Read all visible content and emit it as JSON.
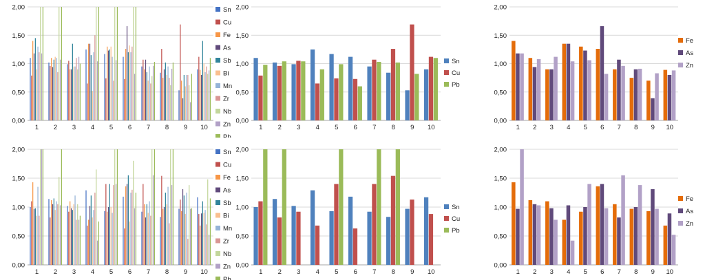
{
  "chart_data": [
    {
      "type": "bar",
      "categories": [
        "1",
        "2",
        "3",
        "4",
        "5",
        "6",
        "7",
        "8",
        "9",
        "10"
      ],
      "ylim": [
        0,
        2
      ],
      "yticks": [
        "0,00",
        "0,50",
        "1,00",
        "1,50",
        "2,00"
      ],
      "grid": true,
      "legend_position": "right",
      "series": [
        {
          "name": "Sn",
          "color": "#4472C4",
          "values": [
            1.1,
            1.02,
            0.99,
            1.25,
            1.17,
            1.12,
            0.95,
            0.84,
            0.53,
            0.9
          ]
        },
        {
          "name": "Cu",
          "color": "#C0504D",
          "values": [
            0.79,
            0.96,
            1.05,
            0.65,
            0.74,
            0.73,
            1.07,
            1.26,
            1.69,
            1.12
          ]
        },
        {
          "name": "Fe",
          "color": "#F79646",
          "values": [
            1.4,
            1.1,
            0.9,
            1.35,
            1.3,
            1.26,
            0.9,
            0.75,
            0.7,
            0.89
          ]
        },
        {
          "name": "As",
          "color": "#604A7B",
          "values": [
            1.18,
            0.94,
            0.9,
            1.35,
            1.23,
            1.66,
            1.07,
            0.9,
            0.39,
            0.8
          ]
        },
        {
          "name": "Sb",
          "color": "#31849B",
          "values": [
            1.45,
            1.07,
            1.35,
            1.15,
            1.25,
            1.2,
            0.85,
            1.02,
            0.8,
            1.4
          ]
        },
        {
          "name": "Bi",
          "color": "#FABF8F",
          "values": [
            0.9,
            1.12,
            0.95,
            0.52,
            1.3,
            1.32,
            0.7,
            0.8,
            0.6,
            1.0
          ]
        },
        {
          "name": "Mn",
          "color": "#95B3D7",
          "values": [
            1.3,
            1.1,
            0.95,
            1.2,
            1.12,
            1.2,
            0.95,
            0.95,
            0.8,
            0.85
          ]
        },
        {
          "name": "Zr",
          "color": "#D99694",
          "values": [
            1.2,
            0.85,
            1.1,
            1.5,
            0.7,
            1.3,
            0.65,
            0.75,
            0.8,
            0.95
          ]
        },
        {
          "name": "Nb",
          "color": "#C3D69B",
          "values": [
            2.0,
            2.0,
            0.9,
            2.0,
            2.0,
            2.0,
            0.78,
            0.62,
            0.62,
            0.82
          ]
        },
        {
          "name": "Zn",
          "color": "#B2A1C7",
          "values": [
            1.18,
            1.07,
            1.12,
            1.04,
            1.06,
            0.82,
            0.96,
            0.91,
            0.32,
            0.88
          ]
        },
        {
          "name": "Pb",
          "color": "#9BBB59",
          "values": [
            2.0,
            2.0,
            1.0,
            2.0,
            2.0,
            2.0,
            1.03,
            1.02,
            0.82,
            1.1
          ]
        }
      ]
    },
    {
      "type": "bar",
      "categories": [
        "1",
        "2",
        "3",
        "4",
        "5",
        "6",
        "7",
        "8",
        "9",
        "10"
      ],
      "ylim": [
        0,
        2
      ],
      "yticks": [
        "0,00",
        "0,50",
        "1,00",
        "1,50",
        "2,00"
      ],
      "grid": true,
      "legend_position": "right",
      "series": [
        {
          "name": "Sn",
          "color": "#4F81BD",
          "values": [
            1.1,
            1.02,
            0.99,
            1.25,
            1.17,
            1.12,
            0.95,
            0.84,
            0.53,
            0.9
          ]
        },
        {
          "name": "Cu",
          "color": "#C0504D",
          "values": [
            0.79,
            0.96,
            1.05,
            0.65,
            0.74,
            0.73,
            1.07,
            1.26,
            1.69,
            1.12
          ]
        },
        {
          "name": "Pb",
          "color": "#9BBB59",
          "values": [
            0.98,
            1.04,
            1.04,
            0.9,
            0.99,
            0.6,
            1.03,
            1.02,
            0.82,
            1.1
          ]
        }
      ]
    },
    {
      "type": "bar",
      "categories": [
        "1",
        "2",
        "3",
        "4",
        "5",
        "6",
        "7",
        "8",
        "9",
        "10"
      ],
      "ylim": [
        0,
        2
      ],
      "yticks": [
        "0,00",
        "0,50",
        "1,00",
        "1,50",
        "2,00"
      ],
      "grid": true,
      "legend_position": "right",
      "series": [
        {
          "name": "Fe",
          "color": "#E46C0A",
          "values": [
            1.4,
            1.1,
            0.9,
            1.35,
            1.3,
            1.26,
            0.9,
            0.75,
            0.7,
            0.89
          ]
        },
        {
          "name": "As",
          "color": "#604A7B",
          "values": [
            1.18,
            0.94,
            0.9,
            1.35,
            1.23,
            1.66,
            1.07,
            0.9,
            0.39,
            0.8
          ]
        },
        {
          "name": "Zn",
          "color": "#B2A1C7",
          "values": [
            1.18,
            1.08,
            1.12,
            1.04,
            1.06,
            0.82,
            0.96,
            0.91,
            0.83,
            0.88
          ]
        }
      ]
    },
    {
      "type": "bar",
      "categories": [
        "1",
        "2",
        "3",
        "4",
        "5",
        "6",
        "7",
        "8",
        "9",
        "10"
      ],
      "ylim": [
        0,
        2
      ],
      "yticks": [
        "0,00",
        "0,50",
        "1,00",
        "1,50",
        "2,00"
      ],
      "grid": true,
      "legend_position": "right",
      "series": [
        {
          "name": "Sn",
          "color": "#4472C4",
          "values": [
            1.0,
            1.14,
            1.02,
            1.29,
            0.93,
            1.18,
            0.92,
            0.83,
            0.97,
            1.17
          ]
        },
        {
          "name": "Cu",
          "color": "#C0504D",
          "values": [
            1.1,
            0.82,
            0.92,
            0.68,
            1.4,
            0.63,
            1.4,
            1.54,
            1.13,
            0.88
          ]
        },
        {
          "name": "Fe",
          "color": "#F79646",
          "values": [
            1.43,
            1.12,
            1.1,
            0.78,
            0.92,
            1.36,
            1.05,
            0.97,
            0.93,
            0.68
          ]
        },
        {
          "name": "As",
          "color": "#604A7B",
          "values": [
            0.97,
            1.05,
            0.98,
            1.02,
            1.0,
            1.4,
            0.82,
            1.0,
            1.31,
            0.89
          ]
        },
        {
          "name": "Sb",
          "color": "#31849B",
          "values": [
            0.98,
            1.15,
            0.95,
            1.2,
            1.4,
            1.55,
            1.05,
            1.25,
            1.2,
            1.1
          ]
        },
        {
          "name": "Bi",
          "color": "#FABF8F",
          "values": [
            0.85,
            0.95,
            1.05,
            0.82,
            1.0,
            0.75,
            0.9,
            1.05,
            0.88,
            0.9
          ]
        },
        {
          "name": "Mn",
          "color": "#95B3D7",
          "values": [
            1.35,
            1.1,
            1.2,
            0.95,
            0.9,
            1.25,
            1.1,
            1.35,
            1.25,
            0.95
          ]
        },
        {
          "name": "Zr",
          "color": "#D99694",
          "values": [
            0.85,
            1.05,
            0.78,
            1.25,
            1.38,
            1.3,
            0.85,
            0.72,
            0.45,
            0.7
          ]
        },
        {
          "name": "Nb",
          "color": "#C3D69B",
          "values": [
            2.0,
            1.52,
            1.05,
            1.65,
            2.0,
            1.8,
            2.0,
            2.0,
            1.38,
            1.48
          ]
        },
        {
          "name": "Zn",
          "color": "#B2A1C7",
          "values": [
            2.0,
            1.03,
            0.78,
            0.42,
            1.4,
            0.98,
            1.55,
            1.38,
            0.97,
            0.52
          ]
        },
        {
          "name": "Pb",
          "color": "#9BBB59",
          "values": [
            2.0,
            2.0,
            0.85,
            0.75,
            2.0,
            1.25,
            2.0,
            2.0,
            0.98,
            1.15
          ]
        }
      ]
    },
    {
      "type": "bar",
      "categories": [
        "1",
        "2",
        "3",
        "4",
        "5",
        "6",
        "7",
        "8",
        "9",
        "10"
      ],
      "ylim": [
        0,
        2
      ],
      "yticks": [
        "0,00",
        "0,50",
        "1,00",
        "1,50",
        "2,00"
      ],
      "grid": true,
      "legend_position": "right",
      "series": [
        {
          "name": "Sn",
          "color": "#4F81BD",
          "values": [
            1.0,
            1.14,
            1.02,
            1.29,
            0.93,
            1.18,
            0.92,
            0.83,
            0.97,
            1.17
          ]
        },
        {
          "name": "Cu",
          "color": "#C0504D",
          "values": [
            1.1,
            0.82,
            0.92,
            0.68,
            1.4,
            0.63,
            1.4,
            1.54,
            1.13,
            0.88
          ]
        },
        {
          "name": "Pb",
          "color": "#9BBB59",
          "values": [
            2.0,
            2.0,
            0.0,
            0.0,
            2.0,
            0.0,
            2.0,
            2.0,
            0.0,
            0.0
          ]
        }
      ]
    },
    {
      "type": "bar",
      "categories": [
        "1",
        "2",
        "3",
        "4",
        "5",
        "6",
        "7",
        "8",
        "9",
        "10"
      ],
      "ylim": [
        0,
        2
      ],
      "yticks": [
        "0,00",
        "0,50",
        "1,00",
        "1,50",
        "2,00"
      ],
      "grid": true,
      "legend_position": "right",
      "series": [
        {
          "name": "Fe",
          "color": "#E46C0A",
          "values": [
            1.43,
            1.12,
            1.1,
            0.78,
            0.92,
            1.36,
            1.05,
            0.97,
            0.93,
            0.68
          ]
        },
        {
          "name": "As",
          "color": "#604A7B",
          "values": [
            0.97,
            1.05,
            0.98,
            1.03,
            1.0,
            1.4,
            0.82,
            1.0,
            1.31,
            0.89
          ]
        },
        {
          "name": "Zn",
          "color": "#B2A1C7",
          "values": [
            2.0,
            1.03,
            0.78,
            0.42,
            1.4,
            0.98,
            1.55,
            1.38,
            0.97,
            0.52
          ]
        }
      ]
    }
  ]
}
